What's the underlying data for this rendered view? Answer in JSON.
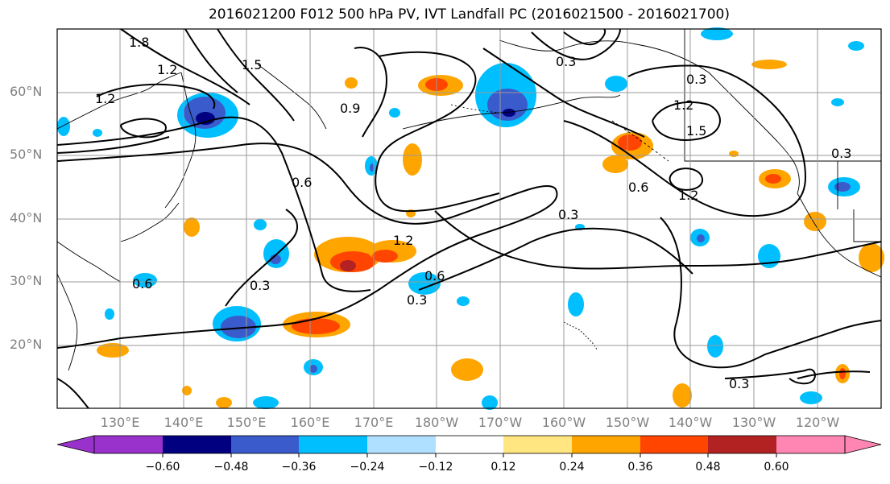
{
  "title": "2016021200 F012 500 hPa PV, IVT Landfall PC (2016021500 - 2016021700)",
  "map": {
    "lat_labels": [
      "60°N",
      "50°N",
      "40°N",
      "30°N",
      "20°N"
    ],
    "lon_labels": [
      "130°E",
      "140°E",
      "150°E",
      "160°E",
      "170°E",
      "180°W",
      "170°W",
      "160°W",
      "150°W",
      "140°W",
      "130°W",
      "120°W"
    ],
    "contour_labels": [
      "1.8",
      "1.5",
      "1.2",
      "1.2",
      "0.9",
      "0.6",
      "0.3",
      "1.2",
      "0.6",
      "0.3",
      "0.3",
      "1.2",
      "0.3",
      "1.5",
      "1.2",
      "0.6",
      "0.3",
      "0.3",
      "0.3",
      "0.6"
    ]
  },
  "colorbar": {
    "tick_labels": [
      "−0.60",
      "−0.48",
      "−0.36",
      "−0.24",
      "−0.12",
      "0.12",
      "0.24",
      "0.36",
      "0.48",
      "0.60"
    ],
    "colors": [
      "#9932cc",
      "#000080",
      "#3a5bcb",
      "#00bfff",
      "#b0e0ff",
      "#ffffff",
      "#ffe680",
      "#ffa500",
      "#ff4500",
      "#b22222",
      "#ff85b3"
    ]
  }
}
